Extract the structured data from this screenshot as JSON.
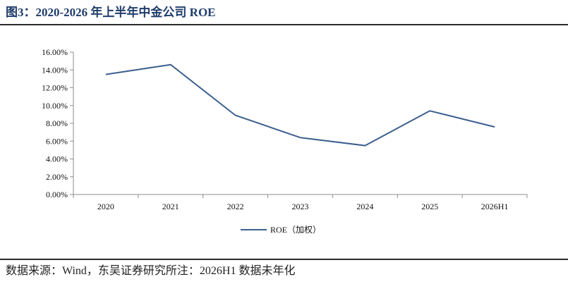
{
  "figure": {
    "title": "图3：2020-2026 年上半年中金公司 ROE",
    "source": "数据来源：Wind，东吴证券研究所注：2026H1 数据未年化"
  },
  "chart_data": {
    "type": "line",
    "categories": [
      "2020",
      "2021",
      "2022",
      "2023",
      "2024",
      "2025",
      "2026H1"
    ],
    "series": [
      {
        "name": "ROE（加权）",
        "values": [
          13.5,
          14.6,
          8.9,
          6.4,
          5.5,
          9.4,
          7.6
        ],
        "color": "#3c5f8f"
      }
    ],
    "ylim": [
      0,
      16
    ],
    "yticks": [
      "0.00%",
      "2.00%",
      "4.00%",
      "6.00%",
      "8.00%",
      "10.00%",
      "12.00%",
      "14.00%",
      "16.00%"
    ],
    "xlabel": "",
    "ylabel": "",
    "grid": false,
    "legend": "bottom-center"
  }
}
